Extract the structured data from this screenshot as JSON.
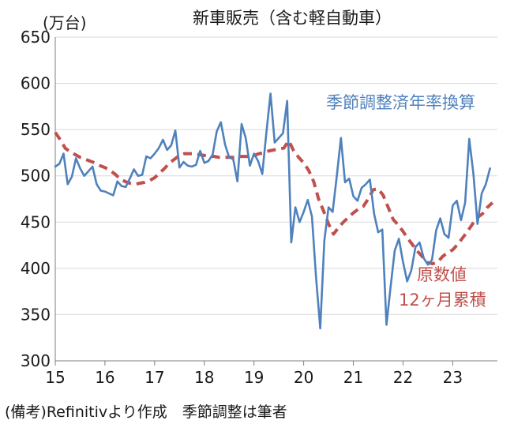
{
  "chart_data": {
    "type": "line",
    "title": "新車販売（含む軽自動車）",
    "ylabel": "(万台)",
    "ylim": [
      300,
      650
    ],
    "yticks": [
      300,
      350,
      400,
      450,
      500,
      550,
      600,
      650
    ],
    "xlim": [
      15,
      23.9
    ],
    "xticks": [
      15,
      16,
      17,
      18,
      19,
      20,
      21,
      22,
      23
    ],
    "xtick_labels": [
      "15",
      "16",
      "17",
      "18",
      "19",
      "20",
      "21",
      "22",
      "23"
    ],
    "grid": "horizontal",
    "series": [
      {
        "name": "季節調整済年率換算",
        "color": "#4F81BD",
        "style": "solid",
        "x": [
          15.0,
          15.083,
          15.167,
          15.25,
          15.333,
          15.417,
          15.5,
          15.583,
          15.667,
          15.75,
          15.833,
          15.917,
          16.0,
          16.083,
          16.167,
          16.25,
          16.333,
          16.417,
          16.5,
          16.583,
          16.667,
          16.75,
          16.833,
          16.917,
          17.0,
          17.083,
          17.167,
          17.25,
          17.333,
          17.417,
          17.5,
          17.583,
          17.667,
          17.75,
          17.833,
          17.917,
          18.0,
          18.083,
          18.167,
          18.25,
          18.333,
          18.417,
          18.5,
          18.583,
          18.667,
          18.75,
          18.833,
          18.917,
          19.0,
          19.083,
          19.167,
          19.25,
          19.333,
          19.417,
          19.5,
          19.583,
          19.667,
          19.75,
          19.833,
          19.917,
          20.0,
          20.083,
          20.167,
          20.25,
          20.333,
          20.417,
          20.5,
          20.583,
          20.667,
          20.75,
          20.833,
          20.917,
          21.0,
          21.083,
          21.167,
          21.25,
          21.333,
          21.417,
          21.5,
          21.583,
          21.667,
          21.75,
          21.833,
          21.917,
          22.0,
          22.083,
          22.167,
          22.25,
          22.333,
          22.417,
          22.5,
          22.583,
          22.667,
          22.75,
          22.833,
          22.917,
          23.0,
          23.083,
          23.167,
          23.25,
          23.333,
          23.417,
          23.5,
          23.583,
          23.667,
          23.75
        ],
        "values": [
          510,
          513,
          524,
          491,
          499,
          519,
          508,
          500,
          505,
          510,
          491,
          484,
          483,
          481,
          479,
          494,
          489,
          488,
          497,
          507,
          500,
          501,
          521,
          519,
          524,
          530,
          539,
          528,
          533,
          549,
          509,
          515,
          511,
          510,
          512,
          527,
          514,
          516,
          523,
          548,
          558,
          534,
          520,
          518,
          494,
          556,
          541,
          511,
          524,
          516,
          502,
          547,
          589,
          536,
          541,
          546,
          581,
          428,
          466,
          450,
          461,
          474,
          456,
          390,
          335,
          430,
          466,
          461,
          500,
          541,
          493,
          497,
          478,
          473,
          487,
          491,
          496,
          459,
          439,
          442,
          339,
          380,
          419,
          432,
          407,
          386,
          398,
          423,
          428,
          411,
          404,
          409,
          441,
          454,
          437,
          433,
          468,
          473,
          452,
          471,
          540,
          502,
          448,
          481,
          491,
          508
        ]
      },
      {
        "name": "原数値12ヶ月累積",
        "color": "#C0504D",
        "style": "dashed",
        "x": [
          15.0,
          15.1,
          15.2,
          15.3,
          15.4,
          15.5,
          15.6,
          15.7,
          15.8,
          15.9,
          16.0,
          16.1,
          16.2,
          16.3,
          16.4,
          16.5,
          16.6,
          16.7,
          16.8,
          16.9,
          17.0,
          17.1,
          17.2,
          17.3,
          17.4,
          17.5,
          17.6,
          17.7,
          17.8,
          17.9,
          18.0,
          18.1,
          18.2,
          18.3,
          18.4,
          18.5,
          18.6,
          18.7,
          18.8,
          18.9,
          19.0,
          19.1,
          19.2,
          19.3,
          19.4,
          19.5,
          19.6,
          19.7,
          19.8,
          19.9,
          20.0,
          20.1,
          20.2,
          20.3,
          20.4,
          20.5,
          20.6,
          20.7,
          20.8,
          20.9,
          21.0,
          21.1,
          21.2,
          21.3,
          21.4,
          21.5,
          21.6,
          21.7,
          21.8,
          21.9,
          22.0,
          22.1,
          22.2,
          22.3,
          22.4,
          22.5,
          22.6,
          22.7,
          22.8,
          22.9,
          23.0,
          23.1,
          23.2,
          23.3,
          23.4,
          23.5,
          23.6,
          23.7,
          23.8
        ],
        "values": [
          547,
          539,
          530,
          526,
          523,
          520,
          518,
          516,
          514,
          511,
          509,
          506,
          502,
          497,
          494,
          492,
          491,
          492,
          493,
          495,
          498,
          503,
          508,
          514,
          518,
          522,
          524,
          524,
          524,
          523,
          522,
          521,
          521,
          520,
          520,
          520,
          520,
          521,
          521,
          521,
          522,
          524,
          525,
          527,
          528,
          529,
          530,
          538,
          527,
          520,
          514,
          506,
          494,
          475,
          462,
          448,
          437,
          444,
          450,
          455,
          460,
          464,
          467,
          475,
          485,
          486,
          479,
          466,
          453,
          447,
          440,
          432,
          425,
          418,
          412,
          406,
          405,
          407,
          413,
          417,
          420,
          426,
          433,
          440,
          448,
          455,
          459,
          466,
          471
        ]
      }
    ],
    "annotations": {
      "seasonal_label": "季節調整済年率換算",
      "raw_label_line1": "原数値",
      "raw_label_line2": "12ヶ月累積"
    }
  },
  "footnote": "(備考)Refinitivより作成　季節調整は筆者"
}
